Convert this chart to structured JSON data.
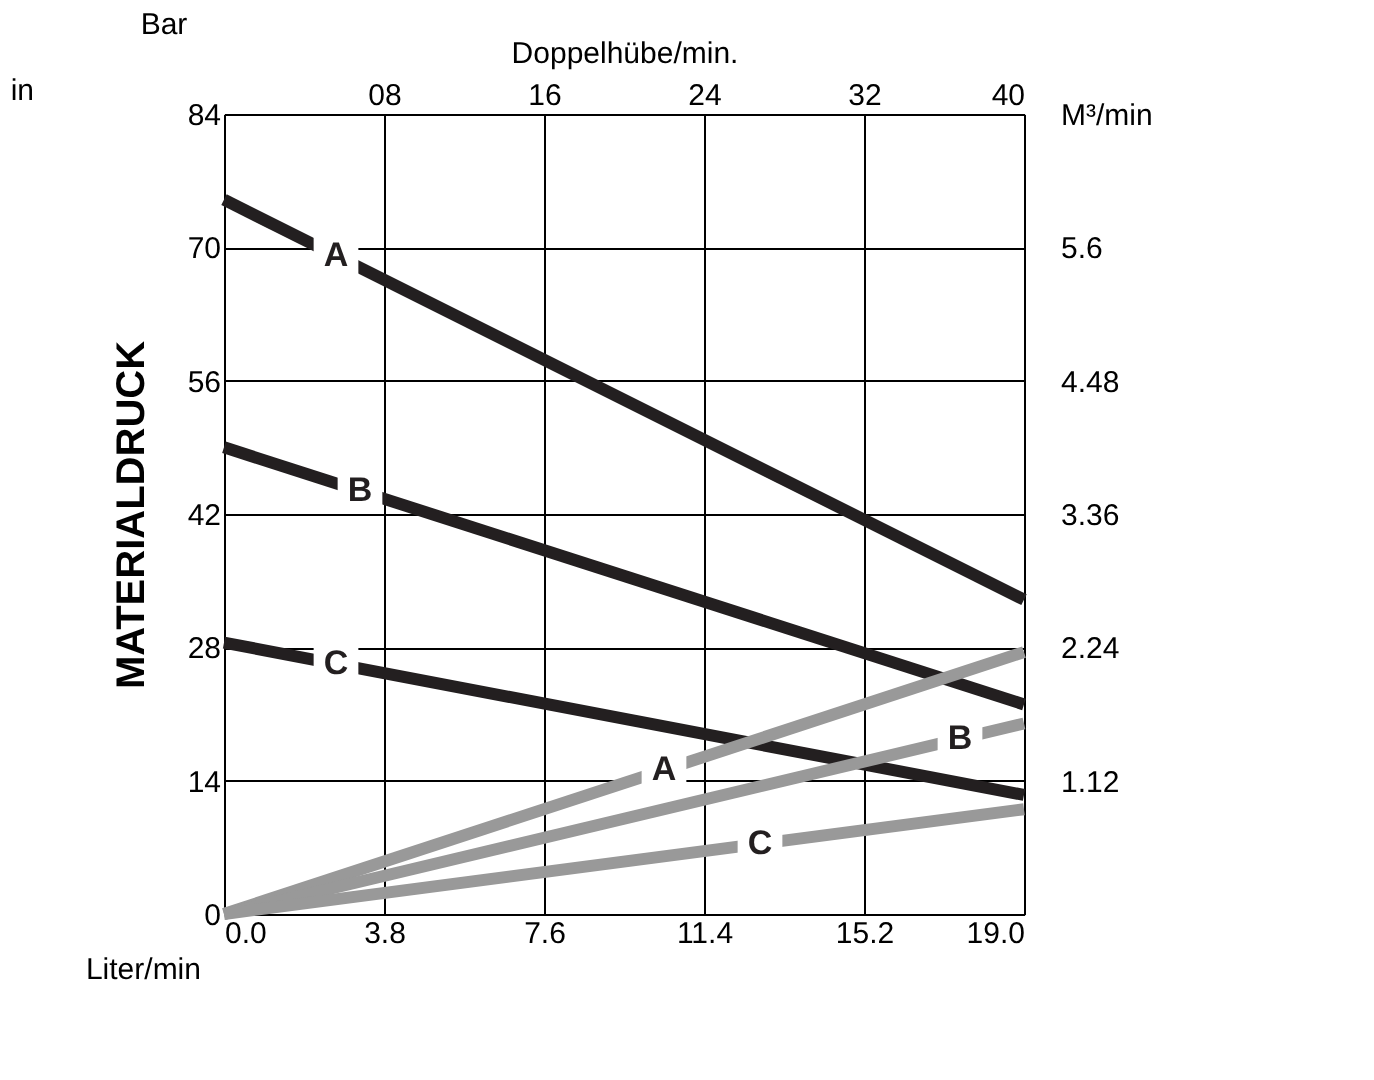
{
  "chart_data": {
    "type": "line",
    "xlabel": "Liter/min",
    "ylabel": "MATERIALDRUCK",
    "x2label": "Doppelhübe/min.",
    "y2label": "M³/min",
    "annotations": [
      "Bar",
      "in"
    ],
    "x": [
      0,
      19
    ],
    "xlim": [
      0,
      19
    ],
    "xticks": [
      {
        "value": 0,
        "label": "0.0"
      },
      3.8,
      7.6,
      11.4,
      15.2,
      {
        "value": 19,
        "label": "19.0"
      }
    ],
    "ylim": [
      0,
      84
    ],
    "yticks": [
      0,
      14,
      28,
      42,
      56,
      70,
      84
    ],
    "x2lim": [
      0,
      40
    ],
    "x2ticks": [
      {
        "value": 8,
        "label": "08"
      },
      16,
      24,
      32,
      40
    ],
    "y2lim": [
      0,
      6.72
    ],
    "y2ticks": [
      1.12,
      2.24,
      3.36,
      4.48,
      5.6
    ],
    "grid": true,
    "legend": false,
    "marker": "none",
    "line_style": "solid",
    "series": [
      {
        "name": "A",
        "color": "#231f20",
        "values": [
          75,
          33
        ]
      },
      {
        "name": "B",
        "color": "#231f20",
        "values": [
          49,
          22
        ]
      },
      {
        "name": "C",
        "color": "#231f20",
        "values": [
          28.5,
          12.5
        ]
      },
      {
        "name": "A",
        "color": "#999999",
        "values": [
          0,
          27.5
        ]
      },
      {
        "name": "B",
        "color": "#999999",
        "values": [
          0,
          20
        ]
      },
      {
        "name": "C",
        "color": "#999999",
        "values": [
          0,
          11
        ]
      }
    ]
  }
}
